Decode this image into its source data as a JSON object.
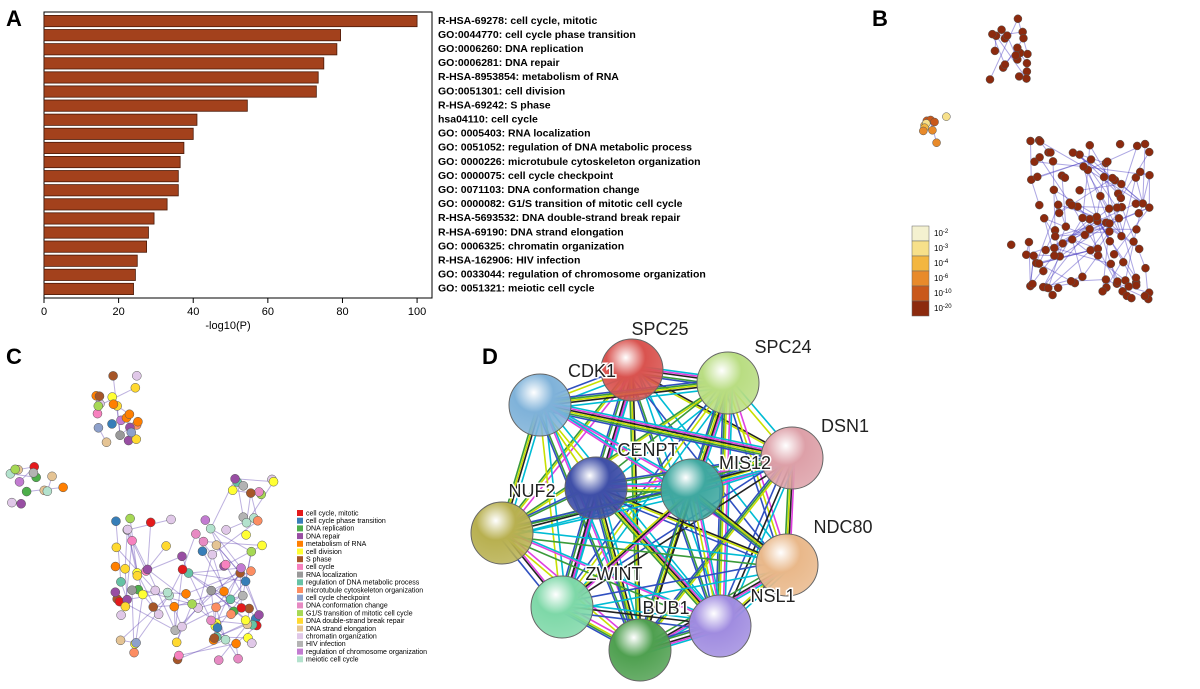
{
  "chart_data": {
    "type": "bar",
    "orientation": "horizontal",
    "categories": [
      "R-HSA-69278: cell cycle, mitotic",
      "GO:0044770: cell cycle phase transition",
      "GO:0006260: DNA replication",
      "GO:0006281: DNA repair",
      "R-HSA-8953854: metabolism of RNA",
      "GO:0051301: cell division",
      "R-HSA-69242: S phase",
      "hsa04110: cell cycle",
      "GO: 0005403: RNA localization",
      "GO: 0051052: regulation of DNA metabolic process",
      "GO: 0000226: microtubule cytoskeleton organization",
      "GO: 0000075: cell cycle checkpoint",
      "GO: 0071103: DNA conformation change",
      "GO: 0000082: G1/S transition of mitotic cell cycle",
      "R-HSA-5693532: DNA double-strand break repair",
      "R-HSA-69190: DNA strand elongation",
      "GO: 0006325: chromatin organization",
      "R-HSA-162906: HIV infection",
      "GO: 0033044: regulation of chromosome organization",
      "GO: 0051321: meiotic cell cycle"
    ],
    "values": [
      100,
      79.5,
      78.5,
      75,
      73.5,
      73,
      54.5,
      41,
      40,
      37.5,
      36.5,
      36,
      36,
      33,
      29.5,
      28,
      27.5,
      25,
      24.5,
      24
    ],
    "color": "#a3411c",
    "xlim": [
      0,
      104
    ],
    "xticks": [
      0,
      20,
      40,
      60,
      80,
      100
    ],
    "xlabel": "-log10(P)"
  },
  "panel_labels": [
    "A",
    "B",
    "C",
    "D"
  ],
  "legend_b": {
    "base": "10",
    "exponents": [
      "-2",
      "-3",
      "-4",
      "-6",
      "-10",
      "-20"
    ],
    "colors": [
      "#f4f1d0",
      "#f7e08a",
      "#f3b640",
      "#e88a2a",
      "#c9581a",
      "#8c2a0e"
    ]
  },
  "legend_c": {
    "labels": [
      "cell cycle, mitotic",
      "cell cycle phase transition",
      "DNA replication",
      "DNA repair",
      "metabolism of RNA",
      "cell division",
      "S phase",
      "cell cycle",
      "RNA localization",
      "regulation of DNA metabolic process",
      "microtubule cytoskeleton organization",
      "cell cycle checkpoint",
      "DNA conformation change",
      "G1/S transition of mitotic cell cycle",
      "DNA double-strand break repair",
      "DNA strand elongation",
      "chromatin organization",
      "HIV infection",
      "regulation of chromosome organization",
      "meiotic cell cycle"
    ],
    "colors": [
      "#e41a1c",
      "#377eb8",
      "#4daf4a",
      "#984ea3",
      "#ff7f00",
      "#ffff33",
      "#a65628",
      "#f781bf",
      "#999999",
      "#66c2a5",
      "#fc8d62",
      "#8da0cb",
      "#e78ac3",
      "#a6d854",
      "#ffd92f",
      "#e5c494",
      "#e0c8e8",
      "#b3b3b3",
      "#c27bd1",
      "#b3e2cd"
    ]
  },
  "network_d": {
    "nodes": [
      "SPC25",
      "SPC24",
      "CDK1",
      "DSN1",
      "CENPT",
      "MIS12",
      "NUF2",
      "NDC80",
      "ZWINT",
      "NSL1",
      "BUB1"
    ]
  }
}
